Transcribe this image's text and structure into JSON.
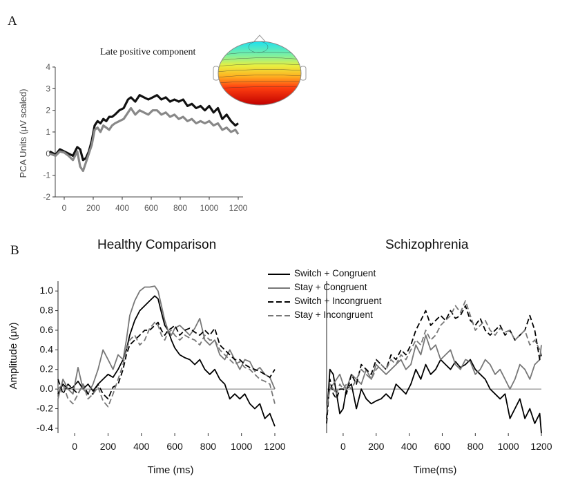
{
  "panel_labels": {
    "a": "A",
    "b": "B"
  },
  "legend": [
    {
      "label": "Switch + Congruent",
      "color": "#000000",
      "dash": false
    },
    {
      "label": "Stay + Congruent",
      "color": "#777777",
      "dash": false
    },
    {
      "label": "Switch + Incongruent",
      "color": "#000000",
      "dash": true
    },
    {
      "label": "Stay + Incongruent",
      "color": "#777777",
      "dash": true
    }
  ],
  "chart_data": [
    {
      "type": "line",
      "title": "Late positive component",
      "xlabel": "",
      "ylabel": "PCA Units (μV scaled)",
      "xlim": [
        -100,
        1200
      ],
      "ylim": [
        -2,
        4
      ],
      "xticks": [
        "0",
        "200",
        "400",
        "600",
        "800",
        "1000",
        "1200"
      ],
      "yticks": [
        "-2",
        "-1",
        "0",
        "1",
        "2",
        "3",
        "4"
      ],
      "series": [
        {
          "color": "#111111",
          "x": [
            -100,
            -60,
            -30,
            0,
            30,
            60,
            90,
            110,
            130,
            150,
            170,
            190,
            210,
            230,
            250,
            270,
            290,
            310,
            330,
            350,
            380,
            410,
            440,
            460,
            490,
            520,
            550,
            580,
            610,
            640,
            670,
            700,
            730,
            760,
            790,
            820,
            850,
            880,
            910,
            940,
            970,
            1000,
            1030,
            1060,
            1090,
            1120,
            1150,
            1180,
            1200
          ],
          "y": [
            0.1,
            -0.05,
            0.2,
            0.1,
            0.0,
            -0.1,
            0.3,
            0.2,
            -0.3,
            -0.2,
            0.1,
            0.6,
            1.3,
            1.5,
            1.4,
            1.6,
            1.5,
            1.7,
            1.7,
            1.8,
            2.0,
            2.1,
            2.5,
            2.6,
            2.4,
            2.7,
            2.6,
            2.5,
            2.6,
            2.7,
            2.5,
            2.6,
            2.4,
            2.5,
            2.4,
            2.5,
            2.2,
            2.3,
            2.1,
            2.2,
            2.0,
            2.2,
            1.9,
            2.1,
            1.6,
            1.8,
            1.5,
            1.3,
            1.4
          ]
        },
        {
          "color": "#888888",
          "x": [
            -100,
            -60,
            -30,
            0,
            30,
            60,
            90,
            110,
            130,
            150,
            170,
            190,
            210,
            230,
            250,
            270,
            290,
            310,
            330,
            350,
            380,
            410,
            440,
            460,
            490,
            520,
            550,
            580,
            610,
            640,
            670,
            700,
            730,
            760,
            790,
            820,
            850,
            880,
            910,
            940,
            970,
            1000,
            1030,
            1060,
            1090,
            1120,
            1150,
            1180,
            1200
          ],
          "y": [
            0.0,
            -0.1,
            0.1,
            0.05,
            -0.1,
            -0.3,
            0.1,
            -0.6,
            -0.8,
            -0.4,
            0.0,
            0.4,
            1.1,
            1.2,
            1.0,
            1.3,
            1.2,
            1.1,
            1.3,
            1.4,
            1.5,
            1.6,
            1.9,
            2.1,
            1.8,
            2.0,
            1.9,
            1.8,
            2.0,
            2.0,
            1.8,
            1.9,
            1.7,
            1.8,
            1.6,
            1.7,
            1.5,
            1.6,
            1.4,
            1.5,
            1.4,
            1.5,
            1.3,
            1.4,
            1.1,
            1.2,
            1.0,
            1.1,
            0.9
          ]
        }
      ]
    },
    {
      "type": "line",
      "title": "Healthy Comparison",
      "xlabel": "Time (ms)",
      "ylabel": "Amplitude (μv)",
      "xlim": [
        -100,
        1200
      ],
      "ylim": [
        -0.45,
        1.1
      ],
      "xticks": [
        "0",
        "200",
        "400",
        "600",
        "800",
        "1000",
        "1200"
      ],
      "yticks": [
        "-0.4",
        "-0.2",
        "0.0",
        "0.2",
        "0.4",
        "0.6",
        "0.8",
        "1.0"
      ],
      "series": [
        {
          "name": "Switch + Congruent",
          "color": "#000000",
          "dash": false,
          "x": [
            -100,
            -70,
            -40,
            -10,
            20,
            50,
            80,
            110,
            140,
            170,
            200,
            230,
            260,
            290,
            310,
            330,
            360,
            390,
            420,
            450,
            480,
            500,
            520,
            540,
            560,
            580,
            600,
            630,
            660,
            690,
            720,
            750,
            780,
            810,
            840,
            870,
            900,
            930,
            960,
            990,
            1020,
            1050,
            1080,
            1110,
            1140,
            1170,
            1200
          ],
          "y": [
            -0.05,
            0.05,
            0.0,
            0.02,
            0.08,
            0.0,
            0.05,
            -0.02,
            0.05,
            0.1,
            0.15,
            0.12,
            0.2,
            0.3,
            0.4,
            0.55,
            0.7,
            0.8,
            0.85,
            0.9,
            0.95,
            0.92,
            0.78,
            0.65,
            0.6,
            0.5,
            0.42,
            0.35,
            0.32,
            0.3,
            0.25,
            0.3,
            0.2,
            0.15,
            0.2,
            0.1,
            0.05,
            -0.1,
            -0.05,
            -0.1,
            -0.05,
            -0.15,
            -0.2,
            -0.15,
            -0.3,
            -0.25,
            -0.38
          ]
        },
        {
          "name": "Stay + Congruent",
          "color": "#777777",
          "dash": false,
          "x": [
            -100,
            -70,
            -40,
            -10,
            20,
            50,
            80,
            110,
            140,
            170,
            200,
            230,
            260,
            290,
            310,
            330,
            360,
            390,
            420,
            450,
            480,
            500,
            520,
            540,
            560,
            580,
            600,
            630,
            660,
            690,
            720,
            750,
            780,
            810,
            840,
            870,
            900,
            930,
            960,
            990,
            1020,
            1050,
            1080,
            1110,
            1140,
            1170,
            1200
          ],
          "y": [
            -0.1,
            0.1,
            0.0,
            -0.05,
            0.22,
            0.0,
            -0.05,
            0.05,
            0.2,
            0.4,
            0.3,
            0.2,
            0.35,
            0.3,
            0.5,
            0.75,
            0.9,
            1.0,
            1.04,
            1.04,
            1.05,
            1.0,
            0.85,
            0.7,
            0.6,
            0.55,
            0.62,
            0.65,
            0.6,
            0.55,
            0.62,
            0.72,
            0.5,
            0.45,
            0.5,
            0.35,
            0.3,
            0.4,
            0.3,
            0.2,
            0.3,
            0.28,
            0.18,
            0.22,
            0.15,
            0.12,
            0.0
          ]
        },
        {
          "name": "Switch + Incongruent",
          "color": "#000000",
          "dash": true,
          "x": [
            -100,
            -70,
            -40,
            -10,
            20,
            50,
            80,
            110,
            140,
            170,
            200,
            230,
            260,
            290,
            310,
            330,
            360,
            390,
            420,
            450,
            480,
            500,
            520,
            540,
            560,
            580,
            600,
            630,
            660,
            690,
            720,
            750,
            780,
            810,
            840,
            870,
            900,
            930,
            960,
            990,
            1020,
            1050,
            1080,
            1110,
            1140,
            1170,
            1200
          ],
          "y": [
            0.1,
            -0.05,
            0.05,
            0.0,
            -0.05,
            0.05,
            -0.05,
            -0.05,
            0.05,
            -0.05,
            -0.1,
            0.02,
            0.05,
            0.2,
            0.35,
            0.45,
            0.5,
            0.55,
            0.6,
            0.6,
            0.65,
            0.68,
            0.6,
            0.55,
            0.6,
            0.62,
            0.65,
            0.55,
            0.6,
            0.62,
            0.58,
            0.55,
            0.6,
            0.55,
            0.62,
            0.45,
            0.4,
            0.35,
            0.3,
            0.3,
            0.25,
            0.22,
            0.2,
            0.18,
            0.15,
            0.12,
            0.2
          ]
        },
        {
          "name": "Stay + Incongruent",
          "color": "#777777",
          "dash": true,
          "x": [
            -100,
            -70,
            -40,
            -10,
            20,
            50,
            80,
            110,
            140,
            170,
            200,
            230,
            260,
            290,
            310,
            330,
            360,
            390,
            420,
            450,
            480,
            500,
            520,
            540,
            560,
            580,
            600,
            630,
            660,
            690,
            720,
            750,
            780,
            810,
            840,
            870,
            900,
            930,
            960,
            990,
            1020,
            1050,
            1080,
            1110,
            1140,
            1170,
            1200
          ],
          "y": [
            0.0,
            0.05,
            -0.1,
            -0.15,
            -0.05,
            0.05,
            -0.1,
            -0.05,
            0.02,
            -0.12,
            -0.18,
            -0.05,
            0.1,
            0.25,
            0.4,
            0.5,
            0.55,
            0.45,
            0.5,
            0.62,
            0.68,
            0.65,
            0.55,
            0.5,
            0.58,
            0.6,
            0.55,
            0.5,
            0.55,
            0.52,
            0.5,
            0.45,
            0.55,
            0.5,
            0.5,
            0.4,
            0.35,
            0.3,
            0.25,
            0.28,
            0.22,
            0.2,
            0.15,
            0.1,
            0.08,
            0.05,
            -0.15
          ]
        }
      ]
    },
    {
      "type": "line",
      "title": "Schizophrenia",
      "xlabel": "Time(ms)",
      "ylabel": "",
      "xlim": [
        -100,
        1200
      ],
      "ylim": [
        -0.45,
        1.1
      ],
      "xticks": [
        "0",
        "200",
        "400",
        "600",
        "800",
        "1000",
        "1200"
      ],
      "series": [
        {
          "name": "Switch + Congruent",
          "color": "#000000",
          "dash": false,
          "x": [
            -100,
            -80,
            -60,
            -40,
            -20,
            0,
            20,
            50,
            80,
            110,
            140,
            170,
            200,
            230,
            260,
            290,
            320,
            350,
            380,
            410,
            440,
            470,
            500,
            530,
            560,
            590,
            620,
            650,
            680,
            710,
            740,
            770,
            800,
            830,
            860,
            890,
            920,
            950,
            980,
            1010,
            1040,
            1070,
            1100,
            1130,
            1160,
            1190,
            1200
          ],
          "y": [
            -0.3,
            0.2,
            0.15,
            -0.05,
            -0.25,
            -0.2,
            0.0,
            0.05,
            -0.2,
            0.0,
            -0.1,
            -0.15,
            -0.12,
            -0.1,
            -0.05,
            -0.1,
            0.05,
            0.0,
            -0.05,
            0.05,
            0.2,
            0.1,
            0.25,
            0.15,
            0.2,
            0.3,
            0.25,
            0.2,
            0.28,
            0.22,
            0.25,
            0.3,
            0.2,
            0.15,
            0.1,
            0.0,
            -0.05,
            -0.1,
            -0.05,
            -0.3,
            -0.2,
            -0.1,
            -0.3,
            -0.2,
            -0.35,
            -0.25,
            -0.45
          ]
        },
        {
          "name": "Stay + Congruent",
          "color": "#777777",
          "dash": false,
          "x": [
            -100,
            -80,
            -60,
            -40,
            -20,
            0,
            20,
            50,
            80,
            110,
            140,
            170,
            200,
            230,
            260,
            290,
            320,
            350,
            380,
            410,
            440,
            470,
            500,
            530,
            560,
            590,
            620,
            650,
            680,
            710,
            740,
            770,
            800,
            830,
            860,
            890,
            920,
            950,
            980,
            1010,
            1040,
            1070,
            1100,
            1130,
            1160,
            1190,
            1200
          ],
          "y": [
            -0.2,
            0.0,
            0.05,
            0.1,
            0.15,
            0.05,
            0.0,
            0.15,
            0.1,
            0.05,
            0.2,
            0.1,
            0.25,
            0.2,
            0.15,
            0.2,
            0.25,
            0.3,
            0.2,
            0.25,
            0.45,
            0.35,
            0.55,
            0.4,
            0.45,
            0.3,
            0.35,
            0.4,
            0.25,
            0.2,
            0.3,
            0.28,
            0.15,
            0.2,
            0.3,
            0.25,
            0.15,
            0.2,
            0.1,
            0.0,
            0.1,
            0.25,
            0.2,
            0.1,
            0.25,
            0.3,
            0.45
          ]
        },
        {
          "name": "Switch + Incongruent",
          "color": "#000000",
          "dash": true,
          "x": [
            -100,
            -80,
            -60,
            -40,
            -20,
            0,
            20,
            50,
            80,
            110,
            140,
            170,
            200,
            230,
            260,
            290,
            320,
            350,
            380,
            410,
            440,
            470,
            500,
            530,
            560,
            590,
            620,
            650,
            680,
            710,
            740,
            770,
            800,
            830,
            860,
            890,
            920,
            950,
            980,
            1010,
            1040,
            1070,
            1100,
            1130,
            1160,
            1190,
            1200
          ],
          "y": [
            -0.35,
            0.1,
            -0.05,
            -0.1,
            0.0,
            0.0,
            -0.05,
            0.15,
            0.05,
            0.25,
            0.2,
            0.15,
            0.3,
            0.25,
            0.2,
            0.35,
            0.3,
            0.4,
            0.35,
            0.45,
            0.6,
            0.7,
            0.8,
            0.65,
            0.7,
            0.75,
            0.7,
            0.8,
            0.72,
            0.75,
            0.85,
            0.7,
            0.65,
            0.72,
            0.6,
            0.55,
            0.6,
            0.65,
            0.55,
            0.6,
            0.5,
            0.55,
            0.6,
            0.75,
            0.6,
            0.3,
            0.35
          ]
        },
        {
          "name": "Stay + Incongruent",
          "color": "#777777",
          "dash": true,
          "x": [
            -100,
            -80,
            -60,
            -40,
            -20,
            0,
            20,
            50,
            80,
            110,
            140,
            170,
            200,
            230,
            260,
            290,
            320,
            350,
            380,
            410,
            440,
            470,
            500,
            530,
            560,
            590,
            620,
            650,
            680,
            710,
            740,
            770,
            800,
            830,
            860,
            890,
            920,
            950,
            980,
            1010,
            1040,
            1070,
            1100,
            1130,
            1160,
            1190,
            1200
          ],
          "y": [
            -0.25,
            0.05,
            0.0,
            -0.05,
            0.05,
            0.0,
            0.05,
            0.0,
            0.1,
            0.2,
            0.15,
            0.1,
            0.2,
            0.25,
            0.2,
            0.3,
            0.25,
            0.35,
            0.3,
            0.4,
            0.5,
            0.45,
            0.6,
            0.5,
            0.55,
            0.65,
            0.7,
            0.75,
            0.85,
            0.78,
            0.9,
            0.75,
            0.6,
            0.65,
            0.7,
            0.6,
            0.55,
            0.62,
            0.58,
            0.6,
            0.5,
            0.55,
            0.6,
            0.45,
            0.5,
            0.4,
            0.35
          ]
        }
      ]
    }
  ]
}
